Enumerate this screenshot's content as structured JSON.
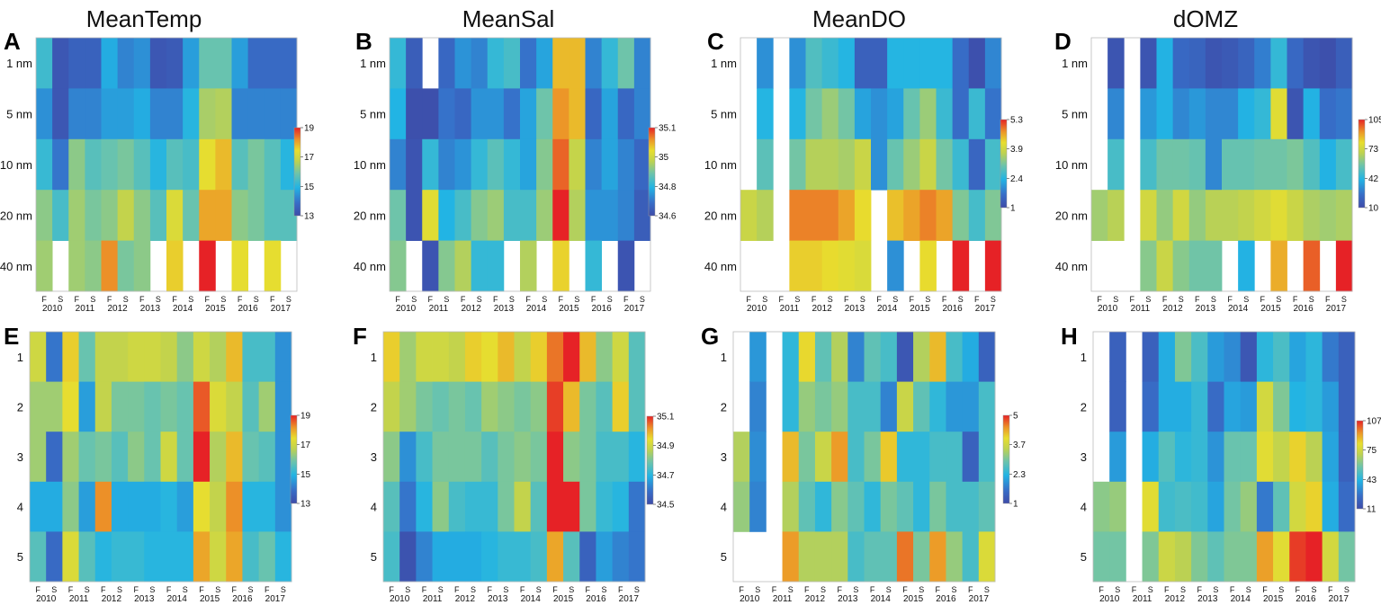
{
  "chart_data": {
    "type": "heatmap",
    "column_titles": [
      "MeanTemp",
      "MeanSal",
      "MeanDO",
      "dOMZ"
    ],
    "years": [
      "2010",
      "2011",
      "2012",
      "2013",
      "2014",
      "2015",
      "2016",
      "2017"
    ],
    "seasons": [
      "F",
      "S"
    ],
    "top_row_labels": [
      "1 nm",
      "5 nm",
      "10 nm",
      "20 nm",
      "40 nm"
    ],
    "bottom_row_labels": [
      "1",
      "2",
      "3",
      "4",
      "5"
    ],
    "panels": [
      {
        "letter": "A",
        "variable": "MeanTemp",
        "rows": "distance",
        "cbar": {
          "ticks": [
            "19",
            "17",
            "15",
            "13"
          ],
          "min": 13,
          "max": 19
        },
        "values": [
          [
            15.3,
            13.3,
            13.6,
            13.6,
            14.8,
            14.2,
            14.4,
            13.3,
            13.4,
            14.6,
            15.8,
            15.8,
            14.6,
            13.8,
            13.8,
            13.8
          ],
          [
            14.4,
            13.3,
            14.2,
            14.2,
            14.6,
            14.6,
            14.8,
            14.2,
            14.2,
            15.0,
            16.5,
            16.6,
            14.2,
            14.2,
            14.2,
            14.2
          ],
          [
            15.2,
            14.0,
            16.2,
            15.6,
            15.8,
            16.0,
            15.6,
            15.0,
            15.6,
            15.4,
            17.4,
            17.8,
            15.6,
            16.0,
            15.6,
            15.0
          ],
          [
            16.2,
            15.4,
            16.4,
            16.0,
            16.2,
            16.8,
            16.2,
            15.6,
            17.2,
            15.8,
            18.0,
            18.0,
            16.2,
            16.0,
            15.6,
            15.6
          ],
          [
            16.4,
            null,
            16.4,
            16.2,
            18.2,
            16.0,
            16.2,
            null,
            17.6,
            null,
            19.0,
            null,
            17.4,
            null,
            17.4,
            null
          ]
        ]
      },
      {
        "letter": "B",
        "variable": "MeanSal",
        "rows": "distance",
        "cbar": {
          "ticks": [
            "35.1",
            "35",
            "34.8",
            "34.6"
          ],
          "min": 34.6,
          "max": 35.1
        },
        "values": [
          [
            34.78,
            34.64,
            null,
            34.66,
            34.72,
            34.7,
            34.78,
            34.8,
            34.68,
            34.74,
            35.0,
            35.0,
            34.7,
            34.78,
            34.84,
            34.7
          ],
          [
            34.76,
            34.61,
            34.61,
            34.68,
            34.66,
            34.72,
            34.72,
            34.68,
            34.74,
            34.84,
            35.03,
            35.0,
            34.66,
            34.74,
            34.66,
            34.7
          ],
          [
            34.7,
            34.62,
            34.78,
            34.7,
            34.72,
            34.78,
            34.82,
            34.78,
            34.74,
            34.86,
            35.06,
            34.92,
            34.7,
            34.74,
            34.7,
            34.66
          ],
          [
            34.84,
            34.62,
            34.96,
            34.76,
            34.8,
            34.86,
            34.88,
            34.8,
            34.8,
            34.88,
            35.12,
            34.9,
            34.72,
            34.72,
            34.7,
            34.64
          ],
          [
            34.86,
            null,
            34.62,
            34.86,
            34.9,
            34.78,
            34.78,
            null,
            34.9,
            null,
            34.98,
            null,
            34.78,
            null,
            34.62,
            null
          ]
        ]
      },
      {
        "letter": "C",
        "variable": "MeanDO",
        "rows": "distance",
        "cbar": {
          "ticks": [
            "5.3",
            "3.9",
            "2.4",
            "1"
          ],
          "min": 1,
          "max": 5.3
        },
        "values": [
          [
            null,
            2.0,
            null,
            2.0,
            2.8,
            2.6,
            2.4,
            1.4,
            1.4,
            2.4,
            2.4,
            2.4,
            2.4,
            1.6,
            1.1,
            1.9
          ],
          [
            null,
            2.4,
            null,
            2.4,
            3.1,
            3.4,
            3.1,
            2.2,
            2.0,
            2.2,
            3.0,
            3.4,
            2.6,
            1.6,
            2.6,
            1.7
          ],
          [
            null,
            2.9,
            null,
            3.1,
            3.6,
            3.6,
            3.5,
            3.8,
            2.0,
            3.0,
            3.4,
            3.8,
            3.1,
            2.6,
            1.5,
            2.7
          ],
          [
            3.8,
            3.6,
            null,
            4.8,
            4.8,
            4.8,
            4.6,
            4.2,
            null,
            4.4,
            4.6,
            4.8,
            4.6,
            3.2,
            2.7,
            3.2
          ],
          [
            null,
            null,
            null,
            4.3,
            4.3,
            4.2,
            4.1,
            4.0,
            null,
            2.0,
            null,
            4.2,
            null,
            5.3,
            null,
            5.3
          ]
        ]
      },
      {
        "letter": "D",
        "variable": "dOMZ",
        "rows": "distance",
        "cbar": {
          "ticks": [
            "105",
            "73",
            "42",
            "10"
          ],
          "min": 10,
          "max": 105
        },
        "values": [
          [
            null,
            14,
            null,
            14,
            40,
            22,
            20,
            14,
            16,
            20,
            28,
            44,
            22,
            14,
            12,
            18
          ],
          [
            null,
            30,
            null,
            34,
            40,
            30,
            34,
            30,
            30,
            40,
            44,
            78,
            14,
            40,
            24,
            26
          ],
          [
            null,
            48,
            null,
            48,
            56,
            56,
            54,
            30,
            54,
            54,
            56,
            56,
            58,
            50,
            40,
            48
          ],
          [
            64,
            68,
            null,
            74,
            62,
            74,
            62,
            68,
            68,
            70,
            74,
            78,
            72,
            66,
            64,
            66
          ],
          [
            null,
            null,
            null,
            60,
            72,
            60,
            56,
            56,
            null,
            40,
            null,
            88,
            null,
            98,
            null,
            105
          ]
        ]
      },
      {
        "letter": "E",
        "variable": "MeanTemp",
        "rows": "upwelling",
        "cbar": {
          "ticks": [
            "19",
            "17",
            "15",
            "13"
          ],
          "min": 13,
          "max": 19
        },
        "values": [
          [
            17.0,
            14.0,
            17.6,
            15.8,
            16.8,
            16.8,
            17.0,
            17.0,
            16.8,
            16.2,
            17.0,
            16.6,
            17.8,
            15.4,
            15.4,
            14.4
          ],
          [
            16.4,
            16.4,
            17.4,
            14.6,
            16.8,
            16.0,
            16.0,
            15.8,
            16.0,
            15.8,
            18.6,
            17.2,
            16.8,
            15.6,
            16.4,
            14.4
          ],
          [
            16.4,
            13.8,
            16.4,
            15.8,
            16.0,
            15.6,
            16.2,
            15.8,
            17.0,
            15.8,
            19.0,
            16.6,
            17.8,
            15.8,
            15.6,
            14.4
          ],
          [
            14.8,
            14.8,
            16.2,
            14.6,
            18.2,
            14.8,
            14.8,
            14.8,
            15.0,
            14.6,
            17.4,
            16.8,
            18.2,
            15.0,
            15.0,
            14.4
          ],
          [
            15.6,
            13.8,
            17.2,
            15.6,
            15.0,
            15.2,
            15.2,
            15.0,
            15.0,
            15.0,
            18.0,
            17.0,
            18.0,
            15.4,
            15.8,
            15.0
          ]
        ]
      },
      {
        "letter": "F",
        "variable": "MeanSal",
        "rows": "upwelling",
        "cbar": {
          "ticks": [
            "35.1",
            "34.9",
            "34.7",
            "34.5"
          ],
          "min": 34.5,
          "max": 35.1
        },
        "values": [
          [
            34.96,
            34.84,
            34.9,
            34.9,
            34.88,
            34.96,
            34.94,
            34.98,
            34.88,
            34.96,
            35.04,
            35.1,
            34.98,
            34.82,
            34.9,
            34.76
          ],
          [
            34.88,
            34.84,
            34.8,
            34.78,
            34.8,
            34.78,
            34.84,
            34.82,
            34.8,
            34.82,
            35.08,
            34.98,
            34.8,
            34.76,
            34.96,
            34.76
          ],
          [
            34.82,
            34.64,
            34.74,
            34.8,
            34.8,
            34.8,
            34.76,
            34.8,
            34.82,
            34.8,
            35.1,
            34.82,
            34.8,
            34.74,
            34.74,
            34.7
          ],
          [
            34.76,
            34.6,
            34.7,
            34.82,
            34.74,
            34.72,
            34.72,
            34.8,
            34.88,
            34.76,
            35.1,
            35.1,
            34.8,
            34.72,
            34.7,
            34.6
          ],
          [
            34.74,
            34.52,
            34.62,
            34.68,
            34.68,
            34.68,
            34.7,
            34.72,
            34.72,
            34.74,
            35.0,
            34.76,
            34.56,
            34.66,
            34.62,
            34.6
          ]
        ]
      },
      {
        "letter": "G",
        "variable": "MeanDO",
        "rows": "upwelling",
        "cbar": {
          "ticks": [
            "5",
            "3.7",
            "2.3",
            "1"
          ],
          "min": 1,
          "max": 5
        },
        "values": [
          [
            null,
            2.0,
            null,
            2.4,
            4.0,
            2.8,
            3.4,
            1.8,
            2.8,
            2.6,
            1.2,
            3.4,
            4.2,
            2.6,
            2.2,
            1.4
          ],
          [
            null,
            1.8,
            null,
            2.4,
            3.2,
            3.0,
            3.2,
            2.6,
            2.6,
            1.8,
            3.6,
            2.8,
            2.4,
            2.0,
            2.0,
            2.6
          ],
          [
            3.4,
            1.9,
            null,
            4.2,
            3.0,
            3.6,
            4.4,
            2.6,
            3.0,
            4.1,
            2.4,
            2.4,
            2.6,
            2.6,
            1.4,
            2.6
          ],
          [
            3.2,
            1.8,
            null,
            3.4,
            2.8,
            2.4,
            3.1,
            2.8,
            2.4,
            3.0,
            2.8,
            2.4,
            3.0,
            2.6,
            2.6,
            2.8
          ],
          [
            null,
            null,
            null,
            4.4,
            3.4,
            3.4,
            3.4,
            2.6,
            2.8,
            2.8,
            4.6,
            3.0,
            4.4,
            3.2,
            2.6,
            3.8
          ]
        ]
      },
      {
        "letter": "H",
        "variable": "dOMZ",
        "rows": "upwelling",
        "cbar": {
          "ticks": [
            "107",
            "75",
            "43",
            "11"
          ],
          "min": 11,
          "max": 107
        },
        "values": [
          [
            null,
            20,
            null,
            20,
            40,
            60,
            50,
            36,
            32,
            16,
            44,
            50,
            38,
            44,
            28,
            20
          ],
          [
            null,
            20,
            null,
            24,
            40,
            40,
            46,
            24,
            38,
            36,
            76,
            60,
            42,
            44,
            36,
            20
          ],
          [
            null,
            36,
            null,
            40,
            52,
            44,
            46,
            34,
            56,
            56,
            80,
            72,
            84,
            70,
            38,
            20
          ],
          [
            62,
            64,
            null,
            80,
            48,
            50,
            48,
            38,
            58,
            64,
            28,
            54,
            76,
            84,
            40,
            24
          ],
          [
            58,
            58,
            null,
            60,
            74,
            70,
            60,
            54,
            60,
            60,
            92,
            80,
            104,
            107,
            76,
            58
          ]
        ]
      }
    ]
  }
}
